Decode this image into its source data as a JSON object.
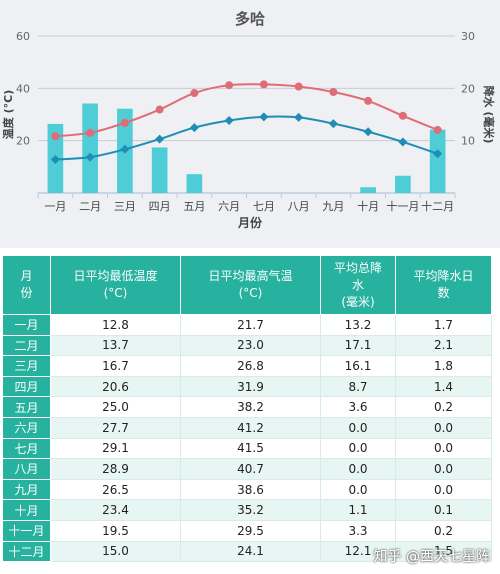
{
  "chart_data": {
    "type": "bar+line",
    "title": "多哈",
    "xlabel": "月份",
    "ylabel_left": "温度 (°C)",
    "ylabel_right": "降水 (毫米)",
    "categories": [
      "一月",
      "二月",
      "三月",
      "四月",
      "五月",
      "六月",
      "七月",
      "八月",
      "九月",
      "十月",
      "十一月",
      "十二月"
    ],
    "y_left_range": [
      0,
      60
    ],
    "y_left_ticks": [
      "20",
      "40",
      "60"
    ],
    "y_right_range": [
      0,
      30
    ],
    "y_right_ticks": [
      "10",
      "20",
      "30"
    ],
    "grid": true,
    "series": [
      {
        "type": "bar",
        "axis": "right",
        "color": "#4ecdd6",
        "values": [
          13.2,
          17.1,
          16.1,
          8.7,
          3.6,
          0.0,
          0.0,
          0.0,
          0.0,
          1.1,
          3.3,
          12.1
        ]
      },
      {
        "type": "line",
        "axis": "left",
        "color": "#e06c75",
        "marker": "circle",
        "values": [
          21.7,
          23.0,
          26.8,
          31.9,
          38.2,
          41.2,
          41.5,
          40.7,
          38.6,
          35.2,
          29.5,
          24.1
        ]
      },
      {
        "type": "line",
        "axis": "left",
        "color": "#1f8db5",
        "marker": "diamond",
        "values": [
          12.8,
          13.7,
          16.7,
          20.6,
          25.0,
          27.7,
          29.1,
          28.9,
          26.5,
          23.4,
          19.5,
          15.0
        ]
      }
    ]
  },
  "table": {
    "headers": [
      "月份",
      "日平均最低温度(°C)",
      "日平均最高气温(°C)",
      "平均总降水(毫米)",
      "平均降水日数"
    ],
    "rows": [
      [
        "一月",
        "12.8",
        "21.7",
        "13.2",
        "1.7"
      ],
      [
        "二月",
        "13.7",
        "23.0",
        "17.1",
        "2.1"
      ],
      [
        "三月",
        "16.7",
        "26.8",
        "16.1",
        "1.8"
      ],
      [
        "四月",
        "20.6",
        "31.9",
        "8.7",
        "1.4"
      ],
      [
        "五月",
        "25.0",
        "38.2",
        "3.6",
        "0.2"
      ],
      [
        "六月",
        "27.7",
        "41.2",
        "0.0",
        "0.0"
      ],
      [
        "七月",
        "29.1",
        "41.5",
        "0.0",
        "0.0"
      ],
      [
        "八月",
        "28.9",
        "40.7",
        "0.0",
        "0.0"
      ],
      [
        "九月",
        "26.5",
        "38.6",
        "0.0",
        "0.0"
      ],
      [
        "十月",
        "23.4",
        "35.2",
        "1.1",
        "0.1"
      ],
      [
        "十一月",
        "19.5",
        "29.5",
        "3.3",
        "0.2"
      ],
      [
        "十二月",
        "15.0",
        "24.1",
        "12.1",
        "1.5"
      ]
    ]
  },
  "watermark": "知乎 @西天七星阵"
}
